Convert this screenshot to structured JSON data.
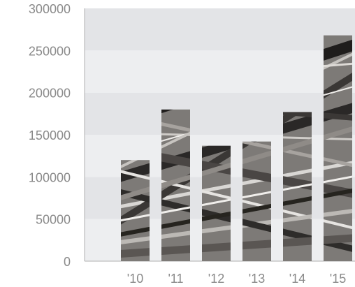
{
  "chart_data": {
    "type": "bar",
    "categories": [
      "'10",
      "'11",
      "'12",
      "'13",
      "'14",
      "'15"
    ],
    "values": [
      120000,
      180000,
      137000,
      142000,
      177000,
      268000
    ],
    "ylim": [
      0,
      300000
    ],
    "yticks": [
      "0",
      "50000",
      "100000",
      "150000",
      "200000",
      "250000",
      "300000"
    ],
    "grid": "alternating horizontal bands",
    "legend": "none",
    "title": "",
    "xlabel": "",
    "ylabel": ""
  },
  "colors": {
    "band_light": "#edeef0",
    "band_dark": "#e3e4e7",
    "axis": "#b0b0b0",
    "tick_text": "#8a8a8a",
    "bar_texture_dark": "#2c2a29",
    "bar_texture_light": "#d8d6d3"
  }
}
